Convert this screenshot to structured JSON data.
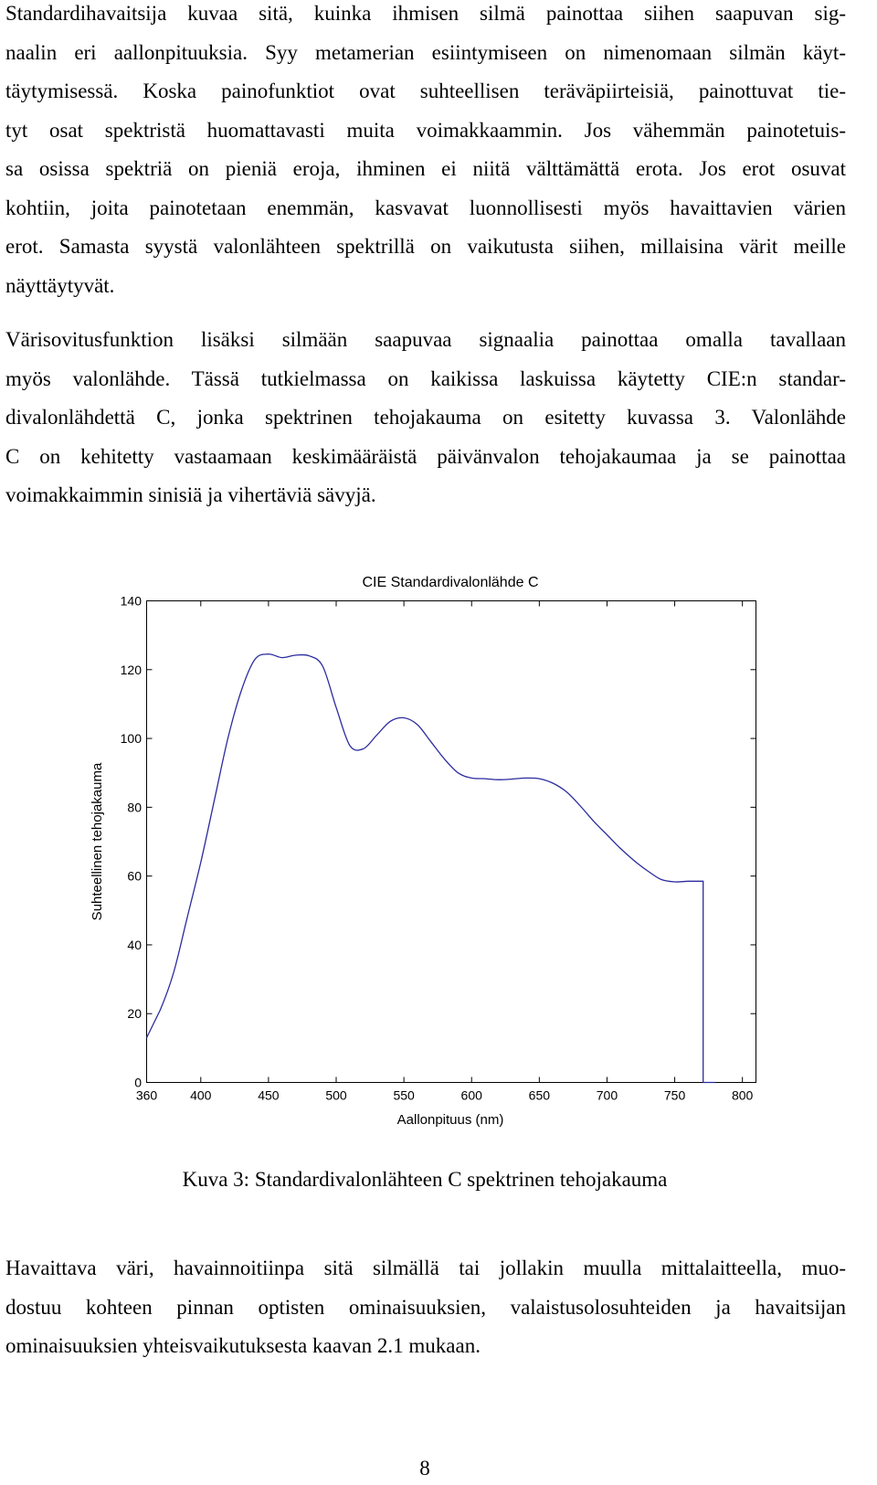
{
  "paragraphs": [
    {
      "lines": [
        "Standardihavaitsija kuvaa sitä, kuinka ihmisen silmä painottaa siihen saapuvan sig-",
        "naalin eri aallonpituuksia. Syy metamerian esiintymiseen on nimenomaan silmän käyt-",
        "täytymisessä. Koska painofunktiot ovat suhteellisen teräväpiirteisiä, painottuvat tie-",
        "tyt osat spektristä huomattavasti muita voimakkaammin. Jos vähemmän painotetuis-",
        "sa osissa spektriä on pieniä eroja, ihminen ei niitä välttämättä erota. Jos erot osuvat",
        "kohtiin, joita painotetaan enemmän, kasvavat luonnollisesti myös havaittavien värien",
        "erot. Samasta syystä valonlähteen spektrillä on vaikutusta siihen, millaisina värit meille",
        "näyttäytyvät."
      ]
    },
    {
      "lines": [
        "Värisovitusfunktion lisäksi silmään saapuvaa signaalia painottaa omalla tavallaan",
        "myös valonlähde. Tässä tutkielmassa on kaikissa laskuissa käytetty CIE:n standar-",
        "divalonlähdettä C, jonka spektrinen tehojakauma on esitetty kuvassa 3. Valonlähde",
        "C on kehitetty vastaamaan keskimääräistä päivänvalon tehojakaumaa ja se painottaa",
        "voimakkaimmin sinisiä ja vihertäviä sävyjä."
      ]
    },
    {
      "lines": [
        "Havaittava väri, havainnoitiinpa sitä silmällä tai jollakin muulla mittalaitteella, muo-",
        "dostuu kohteen pinnan optisten ominaisuuksien, valaistusolosuhteiden ja havaitsijan",
        "ominaisuuksien yhteisvaikutuksesta kaavan 2.1 mukaan."
      ]
    }
  ],
  "caption": "Kuva 3: Standardivalonlähteen C spektrinen tehojakauma",
  "page_number": "8",
  "chart_data": {
    "type": "line",
    "title": "CIE Standardivalonlähde C",
    "xlabel": "Aallonpituus (nm)",
    "ylabel": "Suhteellinen tehojakauma",
    "xlim": [
      360,
      810
    ],
    "ylim": [
      0,
      140
    ],
    "xticks": [
      360,
      400,
      450,
      500,
      550,
      600,
      650,
      700,
      750,
      800
    ],
    "yticks": [
      0,
      20,
      40,
      60,
      80,
      100,
      120,
      140
    ],
    "grid": false,
    "line_color": "#2b2b9f",
    "series": [
      {
        "x": [
          360,
          370,
          380,
          390,
          400,
          410,
          420,
          430,
          440,
          450,
          460,
          470,
          480,
          490,
          500,
          510,
          520,
          530,
          540,
          550,
          560,
          570,
          580,
          590,
          600,
          610,
          620,
          630,
          640,
          650,
          660,
          670,
          680,
          690,
          700,
          710,
          720,
          730,
          740,
          750,
          760,
          770,
          771,
          771,
          780
        ],
        "y": [
          13,
          21,
          32,
          48,
          64,
          82,
          100,
          114,
          123,
          124.5,
          123.5,
          124.2,
          124,
          121,
          109,
          98,
          97,
          101,
          105,
          106,
          104,
          99,
          94,
          90,
          88.5,
          88.3,
          88,
          88.2,
          88.5,
          88.3,
          87,
          84.5,
          80.5,
          76,
          72,
          68,
          64.5,
          61.5,
          59,
          58.3,
          58.5,
          58.5,
          58.5,
          0,
          0
        ]
      }
    ]
  }
}
